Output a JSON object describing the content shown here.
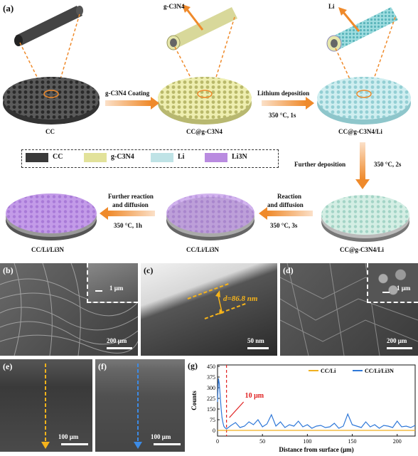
{
  "panel_a": {
    "label": "(a)",
    "top_labels": {
      "gcn": "g-C3N4",
      "li": "Li"
    },
    "disc_labels": {
      "cc": "CC",
      "cc_gcn": "CC@g-C3N4",
      "cc_gcn_li_top": "CC@g-C3N4/Li",
      "cc_gcn_li_bottom": "CC@g-C3N4/Li",
      "cc_li_li3n_mid": "CC/Li/Li3N",
      "cc_li_li3n_end": "CC/Li/Li3N"
    },
    "arrows": {
      "coating": "g-C3N4 Coating",
      "lithium_dep": "Lithium deposition",
      "lithium_dep_cond": "350 °C, 1s",
      "further_dep": "Further deposition",
      "further_dep_cond": "350 °C, 2s",
      "reaction": "Reaction",
      "reaction2": "and diffusion",
      "reaction_cond": "350 °C, 3s",
      "further_react": "Further reaction",
      "further_react2": "and diffusion",
      "further_react_cond": "350 °C, 1h"
    },
    "legend": [
      {
        "name": "CC",
        "color": "#3a3a3a"
      },
      {
        "name": "g-C3N4",
        "color": "#e2e29a"
      },
      {
        "name": "Li",
        "color": "#bfe3e6"
      },
      {
        "name": "Li3N",
        "color": "#b98be0"
      }
    ]
  },
  "panel_b": {
    "label": "(b)",
    "scale_main": "200 μm",
    "scale_inset": "1 μm"
  },
  "panel_c": {
    "label": "(c)",
    "thickness": "d=86.8 nm",
    "scale": "50 nm"
  },
  "panel_d": {
    "label": "(d)",
    "scale_main": "200 μm",
    "scale_inset": "1 μm"
  },
  "panel_e": {
    "label": "(e)",
    "scale": "100 μm"
  },
  "panel_f": {
    "label": "(f)",
    "scale": "100 μm"
  },
  "panel_g": {
    "label": "(g)",
    "annotation": "10 μm"
  },
  "chart_data": {
    "type": "line",
    "xlabel": "Distance from surface (μm)",
    "ylabel": "Counts",
    "xlim": [
      0,
      220
    ],
    "ylim": [
      -40,
      460
    ],
    "xticks": [
      0,
      50,
      100,
      150,
      200
    ],
    "yticks": [
      0,
      75,
      150,
      225,
      300,
      375,
      450
    ],
    "legend_position": "top-right",
    "vline_x": 10,
    "series": [
      {
        "name": "CC/Li",
        "color": "#f0b020",
        "x": [
          0,
          220
        ],
        "y": [
          0,
          0
        ]
      },
      {
        "name": "CC/Li/Li3N",
        "color": "#2f78d8",
        "x": [
          0,
          1,
          2,
          3,
          4,
          5,
          6,
          7,
          8,
          10,
          15,
          20,
          25,
          30,
          35,
          40,
          45,
          50,
          55,
          60,
          65,
          70,
          75,
          80,
          85,
          90,
          95,
          100,
          105,
          110,
          115,
          120,
          125,
          130,
          135,
          140,
          145,
          150,
          155,
          160,
          165,
          170,
          175,
          180,
          185,
          190,
          195,
          200,
          205,
          210,
          215,
          220
        ],
        "y": [
          200,
          365,
          330,
          240,
          150,
          90,
          55,
          30,
          20,
          10,
          35,
          55,
          20,
          30,
          60,
          40,
          75,
          25,
          45,
          110,
          30,
          60,
          20,
          40,
          30,
          65,
          25,
          40,
          15,
          30,
          35,
          20,
          25,
          50,
          15,
          30,
          115,
          40,
          30,
          20,
          60,
          25,
          40,
          15,
          35,
          30,
          20,
          65,
          25,
          30,
          20,
          35
        ]
      }
    ]
  }
}
